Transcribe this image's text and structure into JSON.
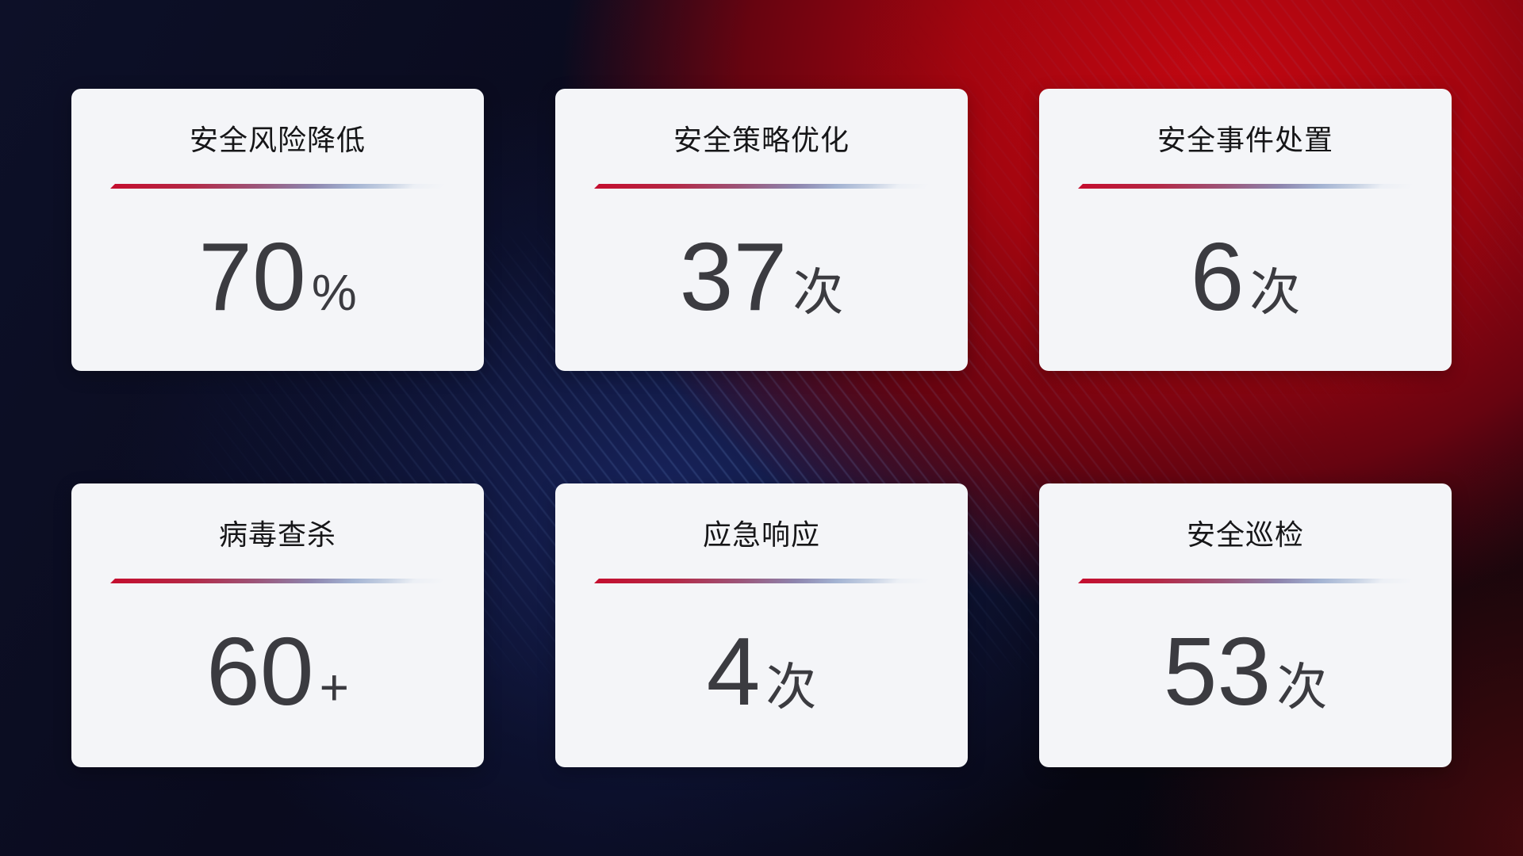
{
  "cards": [
    {
      "title": "安全风险降低",
      "value": "70",
      "suffix": "%"
    },
    {
      "title": "安全策略优化",
      "value": "37",
      "suffix": "次"
    },
    {
      "title": "安全事件处置",
      "value": "6",
      "suffix": "次"
    },
    {
      "title": "病毒查杀",
      "value": "60",
      "suffix": "+"
    },
    {
      "title": "应急响应",
      "value": "4",
      "suffix": "次"
    },
    {
      "title": "安全巡检",
      "value": "53",
      "suffix": "次"
    }
  ],
  "colors": {
    "card_bg": "#f4f5f8",
    "title_text": "#161618",
    "value_text": "#3b3b40",
    "divider_red": "#c40e2f",
    "divider_blue": "#a3b3d2",
    "bg_red_glow": "#c10711",
    "bg_navy_glow": "#18245e",
    "bg_dark": "#07070f"
  }
}
